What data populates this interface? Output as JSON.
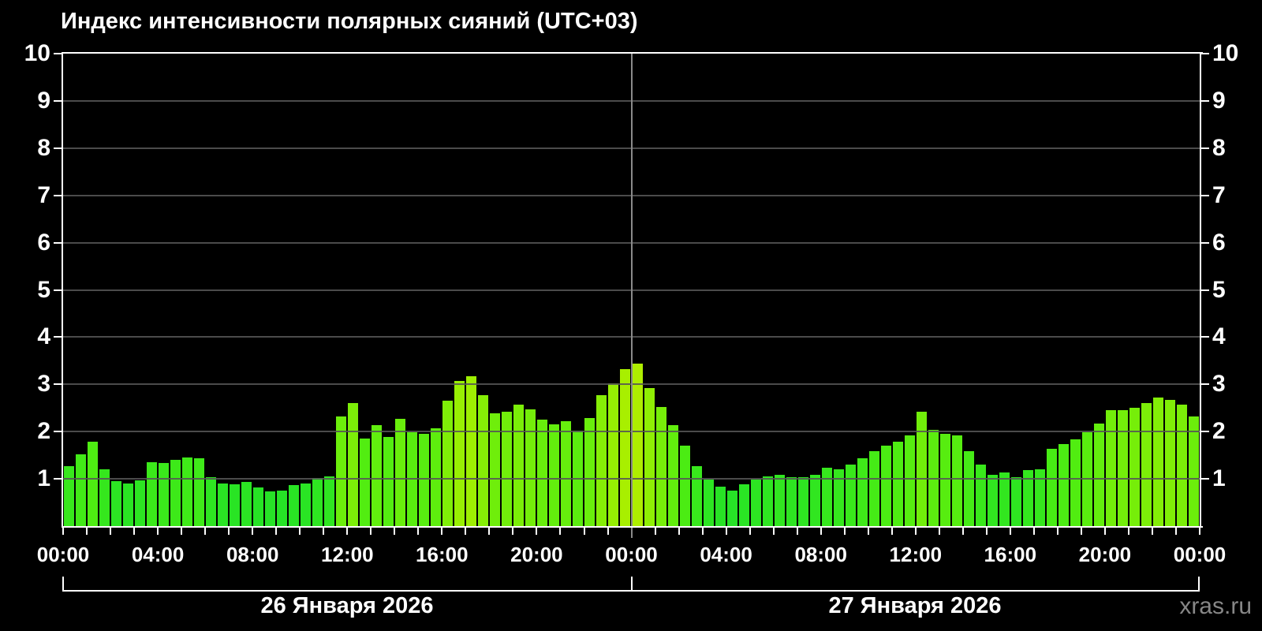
{
  "title": "Индекс интенсивности полярных сияний (UTC+03)",
  "watermark": "xras.ru",
  "colors": {
    "background": "#000000",
    "axis": "#ffffff",
    "grid": "#555555",
    "midnight_line": "#8a8a8a",
    "text": "#ffffff",
    "watermark": "#878787",
    "bar_low_sample": "#2fe22f",
    "bar_mid_sample": "#77ed07",
    "bar_high_sample": "#a6f000"
  },
  "y_axis": {
    "min": 0,
    "max": 10,
    "ticks": [
      1,
      2,
      3,
      4,
      5,
      6,
      7,
      8,
      9,
      10
    ]
  },
  "x_axis": {
    "tick_every_minutes": 60,
    "label_every_hours": 4,
    "tick_labels": [
      "00:00",
      "04:00",
      "08:00",
      "12:00",
      "16:00",
      "20:00",
      "00:00",
      "04:00",
      "08:00",
      "12:00",
      "16:00",
      "20:00",
      "00:00"
    ]
  },
  "days": [
    {
      "label": "26 Января 2026"
    },
    {
      "label": "27 Января 2026"
    }
  ],
  "chart_data": {
    "type": "bar",
    "title": "Индекс интенсивности полярных сияний (UTC+03)",
    "ylim": [
      0,
      10
    ],
    "grid": "horizontal, gray, at every integer",
    "interval_minutes": 30,
    "times": [
      "00:00",
      "00:30",
      "01:00",
      "01:30",
      "02:00",
      "02:30",
      "03:00",
      "03:30",
      "04:00",
      "04:30",
      "05:00",
      "05:30",
      "06:00",
      "06:30",
      "07:00",
      "07:30",
      "08:00",
      "08:30",
      "09:00",
      "09:30",
      "10:00",
      "10:30",
      "11:00",
      "11:30",
      "12:00",
      "12:30",
      "13:00",
      "13:30",
      "14:00",
      "14:30",
      "15:00",
      "15:30",
      "16:00",
      "16:30",
      "17:00",
      "17:30",
      "18:00",
      "18:30",
      "19:00",
      "19:30",
      "20:00",
      "20:30",
      "21:00",
      "21:30",
      "22:00",
      "22:30",
      "23:00",
      "23:30"
    ],
    "series": [
      {
        "name": "26 Января 2026",
        "values": [
          1.27,
          1.52,
          1.78,
          1.21,
          0.95,
          0.91,
          0.97,
          1.35,
          1.33,
          1.41,
          1.46,
          1.44,
          1.03,
          0.9,
          0.88,
          0.94,
          0.82,
          0.74,
          0.76,
          0.87,
          0.9,
          1.02,
          1.05,
          2.32,
          2.61,
          1.86,
          2.13,
          1.88,
          2.27,
          1.99,
          1.96,
          2.07,
          2.66,
          3.07,
          3.17,
          2.77,
          2.38,
          2.42,
          2.58,
          2.47,
          2.26,
          2.16,
          2.22,
          2.02,
          2.28,
          2.78,
          3.03,
          3.32
        ]
      },
      {
        "name": "27 Января 2026",
        "values": [
          3.44,
          2.93,
          2.52,
          2.14,
          1.71,
          1.27,
          0.98,
          0.83,
          0.75,
          0.89,
          0.98,
          1.05,
          1.09,
          1.03,
          1.03,
          1.09,
          1.23,
          1.21,
          1.31,
          1.44,
          1.59,
          1.71,
          1.78,
          1.92,
          2.42,
          2.03,
          1.95,
          1.92,
          1.59,
          1.31,
          1.09,
          1.13,
          1.03,
          1.19,
          1.21,
          1.64,
          1.73,
          1.83,
          1.99,
          2.17,
          2.45,
          2.45,
          2.5,
          2.6,
          2.72,
          2.68,
          2.58,
          2.32
        ]
      }
    ],
    "color_rule": "bar color shifts from green (~hue 120) at low values toward yellow-green (~hue 76) at higher values"
  }
}
